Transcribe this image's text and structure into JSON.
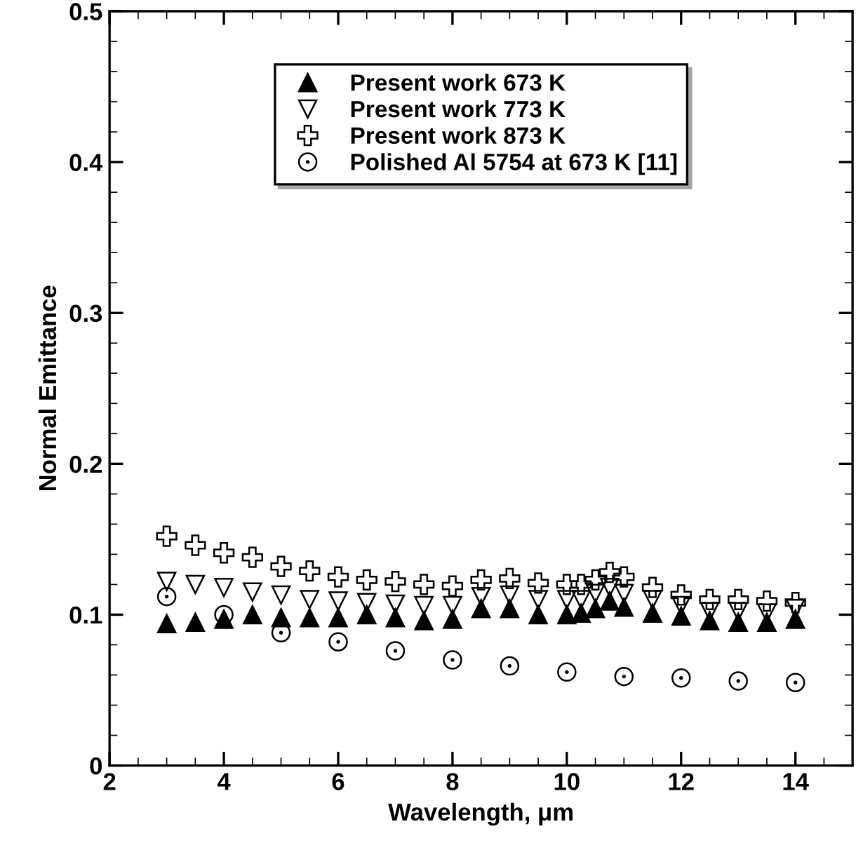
{
  "chart_data": {
    "type": "scatter",
    "xlabel": "Wavelength, μm",
    "ylabel": "Normal Emittance",
    "xlim": [
      2,
      15
    ],
    "ylim": [
      0,
      0.5
    ],
    "xticks": [
      2,
      4,
      6,
      8,
      10,
      12,
      14
    ],
    "yticks": [
      0,
      0.1,
      0.2,
      0.3,
      0.4,
      0.5
    ],
    "grid": false,
    "legend": "top",
    "series": [
      {
        "name": "Present work 673 K",
        "color": "#000000",
        "marker": "triangle",
        "x": [
          3,
          3.5,
          4,
          4.5,
          5,
          5.5,
          6,
          6.5,
          7,
          7.5,
          8,
          8.5,
          9,
          9.5,
          10,
          10.25,
          10.5,
          10.75,
          11,
          11.5,
          12,
          12.5,
          13,
          13.5,
          14
        ],
        "values": [
          0.094,
          0.095,
          0.097,
          0.1,
          0.098,
          0.098,
          0.098,
          0.1,
          0.098,
          0.096,
          0.097,
          0.104,
          0.104,
          0.1,
          0.1,
          0.101,
          0.104,
          0.109,
          0.105,
          0.101,
          0.099,
          0.096,
          0.095,
          0.095,
          0.097
        ]
      },
      {
        "name": "Present work 773 K",
        "color": "#000000",
        "marker": "triangle-down",
        "x": [
          3,
          3.5,
          4,
          4.5,
          5,
          5.5,
          6,
          6.5,
          7,
          7.5,
          8,
          8.5,
          9,
          9.5,
          10,
          10.25,
          10.5,
          10.75,
          11,
          11.5,
          12,
          12.5,
          13,
          13.5,
          14
        ],
        "values": [
          0.122,
          0.12,
          0.118,
          0.115,
          0.113,
          0.11,
          0.109,
          0.108,
          0.107,
          0.106,
          0.106,
          0.112,
          0.113,
          0.11,
          0.11,
          0.11,
          0.114,
          0.118,
          0.114,
          0.11,
          0.106,
          0.102,
          0.102,
          0.101,
          0.104
        ]
      },
      {
        "name": "Present work 873 K",
        "color": "#000000",
        "marker": "cross",
        "x": [
          3,
          3.5,
          4,
          4.5,
          5,
          5.5,
          6,
          6.5,
          7,
          7.5,
          8,
          8.5,
          9,
          9.5,
          10,
          10.25,
          10.5,
          10.75,
          11,
          11.5,
          12,
          12.5,
          13,
          13.5,
          14
        ],
        "values": [
          0.152,
          0.146,
          0.141,
          0.138,
          0.132,
          0.129,
          0.125,
          0.123,
          0.122,
          0.12,
          0.119,
          0.123,
          0.124,
          0.121,
          0.12,
          0.12,
          0.123,
          0.128,
          0.125,
          0.118,
          0.113,
          0.11,
          0.11,
          0.109,
          0.108
        ]
      },
      {
        "name": "Polished Al 5754 at 673 K [11]",
        "color": "#000000",
        "marker": "circle",
        "x": [
          3,
          4,
          5,
          6,
          7,
          8,
          9,
          10,
          11,
          12,
          13,
          14
        ],
        "values": [
          0.112,
          0.1,
          0.088,
          0.082,
          0.076,
          0.07,
          0.066,
          0.062,
          0.059,
          0.058,
          0.056,
          0.055
        ]
      }
    ]
  }
}
